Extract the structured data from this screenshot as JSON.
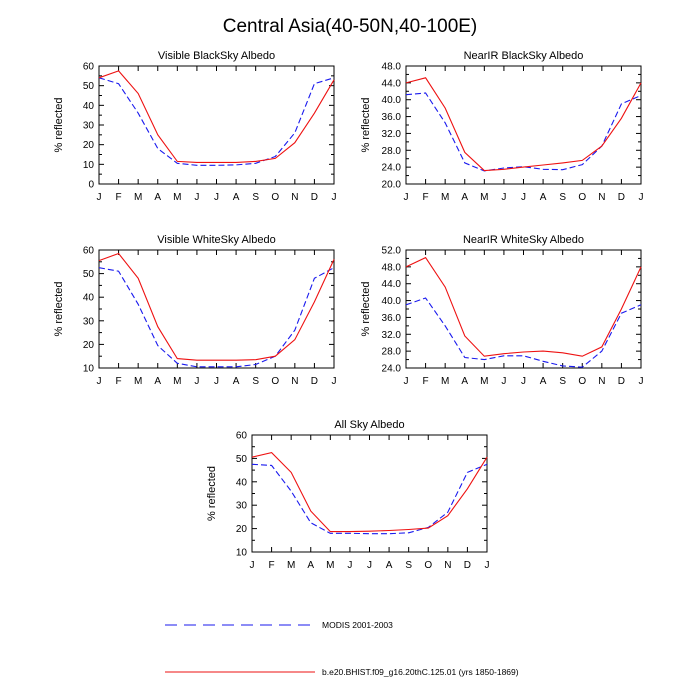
{
  "title": "Central Asia(40-50N,40-100E)",
  "colors": {
    "modis": "#1a1aee",
    "model": "#ee1111",
    "axis": "#000000"
  },
  "legend": {
    "modis_label": "MODIS 2001-2003",
    "model_label": "b.e20.BHIST.f09_g16.20thC.125.01 (yrs 1850-1869)"
  },
  "chart_data": [
    {
      "type": "line",
      "title": "Visible BlackSky Albedo",
      "ylabel": "% reflected",
      "categories": [
        "J",
        "F",
        "M",
        "A",
        "M",
        "J",
        "J",
        "A",
        "S",
        "O",
        "N",
        "D",
        "J"
      ],
      "ylim": [
        0,
        60
      ],
      "yticks": [
        "0",
        "10",
        "20",
        "30",
        "40",
        "50",
        "60"
      ],
      "series": [
        {
          "name": "MODIS 2001-2003",
          "style": "dashed",
          "values": [
            54,
            51,
            36,
            18,
            10.5,
            9.5,
            9.5,
            9.7,
            10.5,
            14,
            26,
            51,
            54
          ]
        },
        {
          "name": "b.e20.BHIST.f09_g16.20thC.125.01 (yrs 1850-1869)",
          "style": "solid",
          "values": [
            54,
            57.5,
            46,
            25,
            11.5,
            11,
            11,
            11,
            11.5,
            13,
            21,
            36,
            53
          ]
        }
      ]
    },
    {
      "type": "line",
      "title": "NearIR BlackSky Albedo",
      "ylabel": "% reflected",
      "categories": [
        "J",
        "F",
        "M",
        "A",
        "M",
        "J",
        "J",
        "A",
        "S",
        "O",
        "N",
        "D",
        "J"
      ],
      "ylim": [
        20,
        48
      ],
      "yticks": [
        "20.0",
        "24.0",
        "28.0",
        "32.0",
        "36.0",
        "40.0",
        "44.0",
        "48.0"
      ],
      "series": [
        {
          "name": "MODIS 2001-2003",
          "style": "dashed",
          "values": [
            41.2,
            41.6,
            34.5,
            25,
            23.1,
            23.8,
            24.1,
            23.5,
            23.4,
            24.6,
            29,
            39,
            41
          ]
        },
        {
          "name": "b.e20.BHIST.f09_g16.20thC.125.01 (yrs 1850-1869)",
          "style": "solid",
          "values": [
            44,
            45.2,
            38,
            27.5,
            23.2,
            23.5,
            24,
            24.5,
            25,
            25.6,
            29,
            35.6,
            44
          ]
        }
      ]
    },
    {
      "type": "line",
      "title": "Visible WhiteSky Albedo",
      "ylabel": "% reflected",
      "categories": [
        "J",
        "F",
        "M",
        "A",
        "M",
        "J",
        "J",
        "A",
        "S",
        "O",
        "N",
        "D",
        "J"
      ],
      "ylim": [
        10,
        60
      ],
      "yticks": [
        "10",
        "20",
        "30",
        "40",
        "50",
        "60"
      ],
      "series": [
        {
          "name": "MODIS 2001-2003",
          "style": "dashed",
          "values": [
            52.5,
            51,
            37,
            19.5,
            12,
            10.5,
            10.5,
            10.5,
            11.5,
            15,
            26,
            48,
            52.5
          ]
        },
        {
          "name": "b.e20.BHIST.f09_g16.20thC.125.01 (yrs 1850-1869)",
          "style": "solid",
          "values": [
            55.5,
            58.5,
            48,
            27.5,
            14,
            13.3,
            13.3,
            13.3,
            13.5,
            15,
            22,
            38,
            56
          ]
        }
      ]
    },
    {
      "type": "line",
      "title": "NearIR WhiteSky Albedo",
      "ylabel": "% reflected",
      "categories": [
        "J",
        "F",
        "M",
        "A",
        "M",
        "J",
        "J",
        "A",
        "S",
        "O",
        "N",
        "D",
        "J"
      ],
      "ylim": [
        24,
        52
      ],
      "yticks": [
        "24.0",
        "28.0",
        "32.0",
        "36.0",
        "40.0",
        "44.0",
        "48.0",
        "52.0"
      ],
      "series": [
        {
          "name": "MODIS 2001-2003",
          "style": "dashed",
          "values": [
            39,
            40.6,
            34,
            26.5,
            26,
            26.9,
            26.9,
            25.6,
            24.5,
            24.2,
            28,
            37,
            39
          ]
        },
        {
          "name": "b.e20.BHIST.f09_g16.20thC.125.01 (yrs 1850-1869)",
          "style": "solid",
          "values": [
            48,
            50.2,
            43.2,
            31.6,
            26.8,
            27.4,
            27.8,
            28,
            27.6,
            26.8,
            29,
            38,
            48
          ]
        }
      ]
    },
    {
      "type": "line",
      "title": "All Sky Albedo",
      "ylabel": "% reflected",
      "categories": [
        "J",
        "F",
        "M",
        "A",
        "M",
        "J",
        "J",
        "A",
        "S",
        "O",
        "N",
        "D",
        "J"
      ],
      "ylim": [
        10,
        60
      ],
      "yticks": [
        "10",
        "20",
        "30",
        "40",
        "50",
        "60"
      ],
      "series": [
        {
          "name": "MODIS 2001-2003",
          "style": "dashed",
          "values": [
            47.5,
            47,
            36,
            22.5,
            18,
            18,
            17.8,
            17.8,
            18.2,
            20.5,
            27,
            44,
            47.5
          ]
        },
        {
          "name": "b.e20.BHIST.f09_g16.20thC.125.01 (yrs 1850-1869)",
          "style": "solid",
          "values": [
            50.5,
            52.5,
            44,
            27.5,
            18.7,
            18.7,
            18.9,
            19.2,
            19.6,
            20.2,
            25.5,
            37,
            50.5
          ]
        }
      ]
    }
  ]
}
